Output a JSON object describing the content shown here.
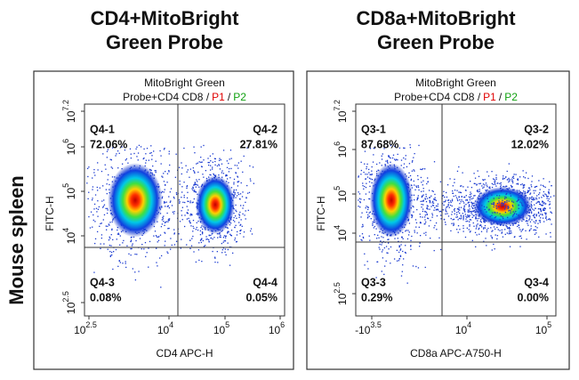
{
  "side_label": "Mouse spleen",
  "panels": [
    {
      "title": [
        "CD4+MitoBright",
        "Green Probe"
      ],
      "plot_title": {
        "line1": "MitoBright Green",
        "line2": "Probe+CD4 CD8 /",
        "p1": "P1",
        "slash": "/",
        "p2": "P2"
      },
      "x_label": "CD4 APC-H",
      "y_label": "FITC-H",
      "x_ticks": [
        {
          "base": "10",
          "exp": "2.5"
        },
        {
          "base": "10",
          "exp": "4"
        },
        {
          "base": "10",
          "exp": "5"
        },
        {
          "base": "10",
          "exp": "6"
        }
      ],
      "y_ticks": [
        {
          "base": "10",
          "exp": "7.2"
        },
        {
          "base": "10",
          "exp": "6"
        },
        {
          "base": "10",
          "exp": "5"
        },
        {
          "base": "10",
          "exp": "4"
        },
        {
          "base": "10",
          "exp": "2.5"
        }
      ],
      "quadrants": [
        {
          "name": "Q4-1",
          "percent": "72.06%"
        },
        {
          "name": "Q4-2",
          "percent": "27.81%"
        },
        {
          "name": "Q4-3",
          "percent": "0.08%"
        },
        {
          "name": "Q4-4",
          "percent": "0.05%"
        }
      ]
    },
    {
      "title": [
        "CD8a+MitoBright",
        "Green Probe"
      ],
      "plot_title": {
        "line1": "MitoBright Green",
        "line2": "Probe+CD4 CD8 /",
        "p1": "P1",
        "slash": "/",
        "p2": "P2"
      },
      "x_label": "CD8a APC-A750-H",
      "y_label": "FITC-H",
      "x_ticks": [
        {
          "base": "-10",
          "exp": "3.5"
        },
        {
          "base": "10",
          "exp": "4"
        },
        {
          "base": "10",
          "exp": "5"
        }
      ],
      "y_ticks": [
        {
          "base": "10",
          "exp": "7.2"
        },
        {
          "base": "10",
          "exp": "6"
        },
        {
          "base": "10",
          "exp": "5"
        },
        {
          "base": "10",
          "exp": "4"
        },
        {
          "base": "10",
          "exp": "2.5"
        }
      ],
      "quadrants": [
        {
          "name": "Q3-1",
          "percent": "87.68%"
        },
        {
          "name": "Q3-2",
          "percent": "12.02%"
        },
        {
          "name": "Q3-3",
          "percent": "0.29%"
        },
        {
          "name": "Q3-4",
          "percent": "0.00%"
        }
      ]
    }
  ]
}
